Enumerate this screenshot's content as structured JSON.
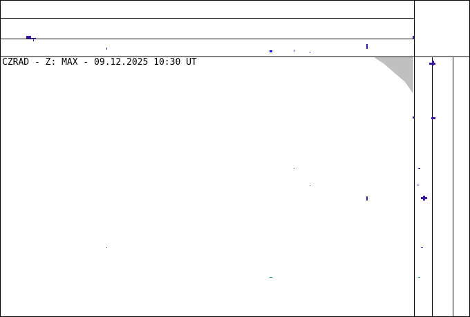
{
  "radar": {
    "title": "CZRAD - Z: MAX - 09.12.2025 10:30 UT",
    "colors": {
      "echo": "#3a1a9a",
      "echo_alt": "#1a1ad0",
      "echo_cyan": "#20a0a0",
      "no_coverage": "#c0c0c0"
    }
  }
}
